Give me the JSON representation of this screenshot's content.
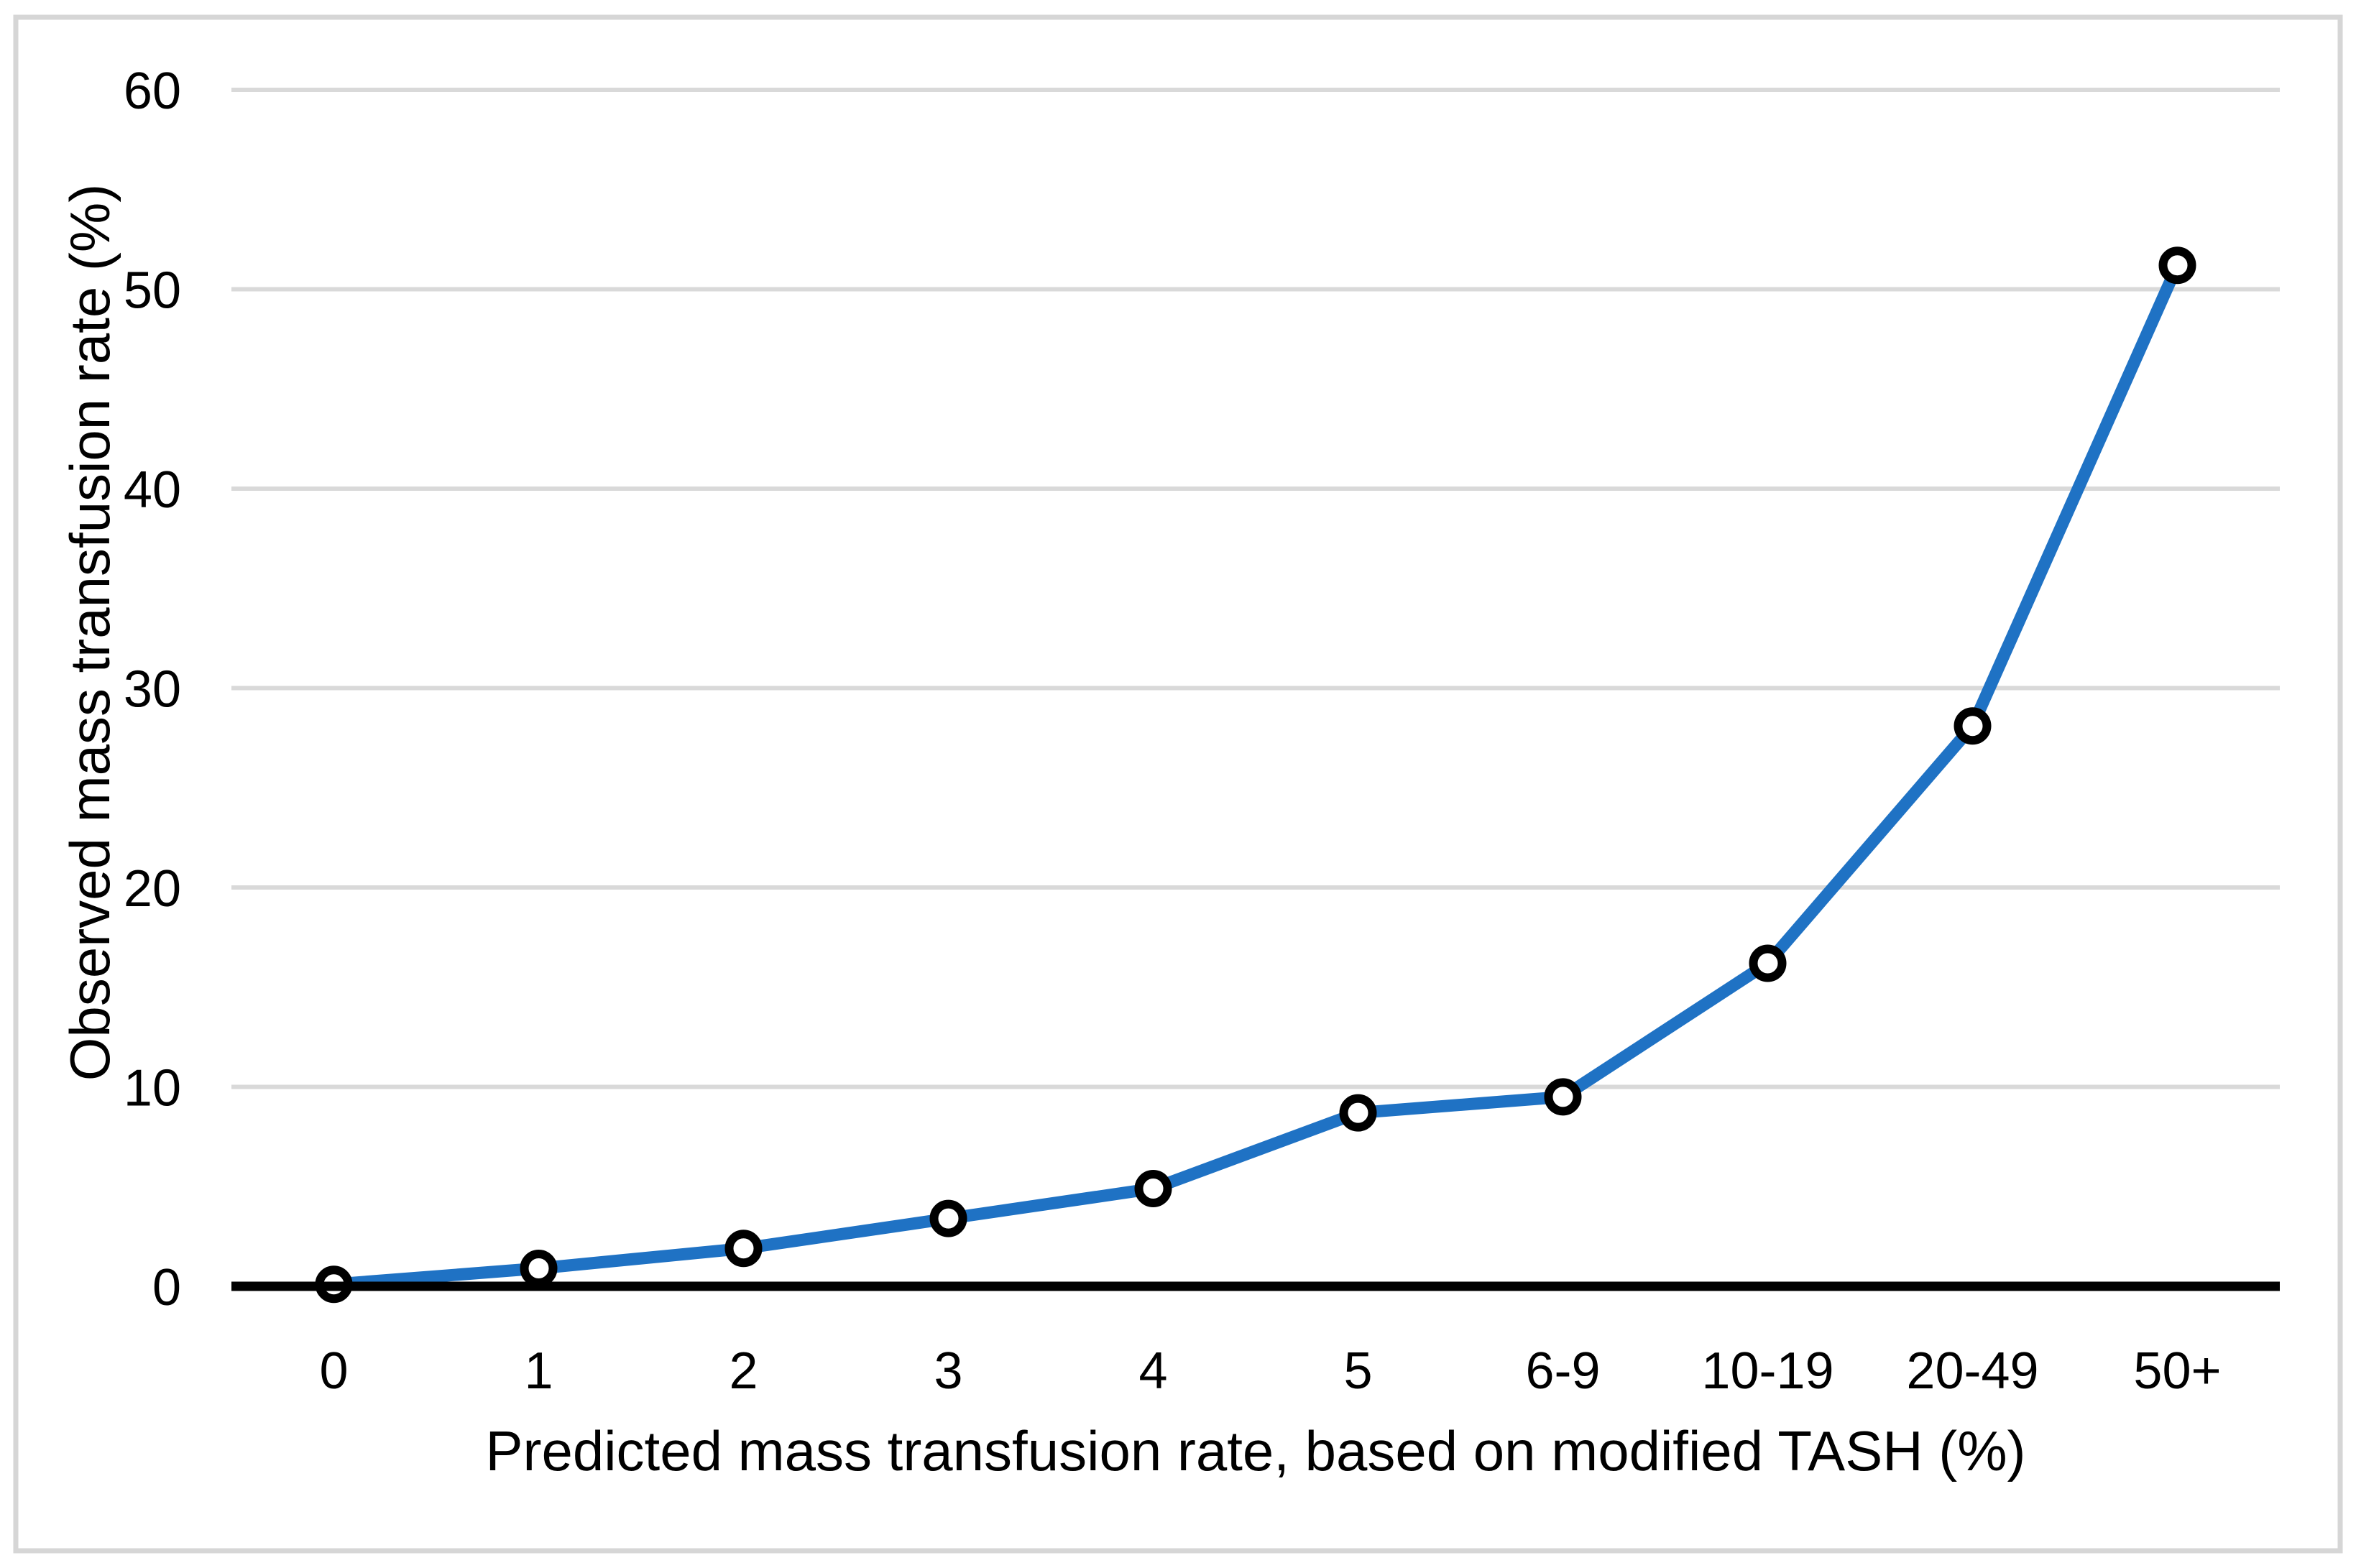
{
  "figure": {
    "kind": "statistical line chart"
  },
  "chart_data": {
    "type": "line",
    "title": "",
    "xlabel": "Predicted mass transfusion rate, based on modified TASH (%)",
    "ylabel": "Observed mass transfusion rate (%)",
    "categories": [
      "0",
      "1",
      "2",
      "3",
      "4",
      "5",
      "6-9",
      "10-19",
      "20-49",
      "50+"
    ],
    "series": [
      {
        "name": "Observed mass transfusion rate",
        "values": [
          0.1,
          0.9,
          1.9,
          3.4,
          4.9,
          8.7,
          9.5,
          16.2,
          28.1,
          51.2
        ]
      }
    ],
    "ylim": [
      0,
      60
    ],
    "yticks": [
      0,
      10,
      20,
      30,
      40,
      50,
      60
    ],
    "grid": "horizontal gridlines on",
    "legend_position": "none",
    "marker": "open-circle",
    "colors": {
      "line": "#1F72C4",
      "marker_fill": "#FFFFFF",
      "marker_stroke": "#000000",
      "gridline": "#D9D9D9",
      "axis_line": "#000000",
      "text": "#000000",
      "figure_border": "#D6D6D6",
      "background": "#FFFFFF"
    }
  }
}
